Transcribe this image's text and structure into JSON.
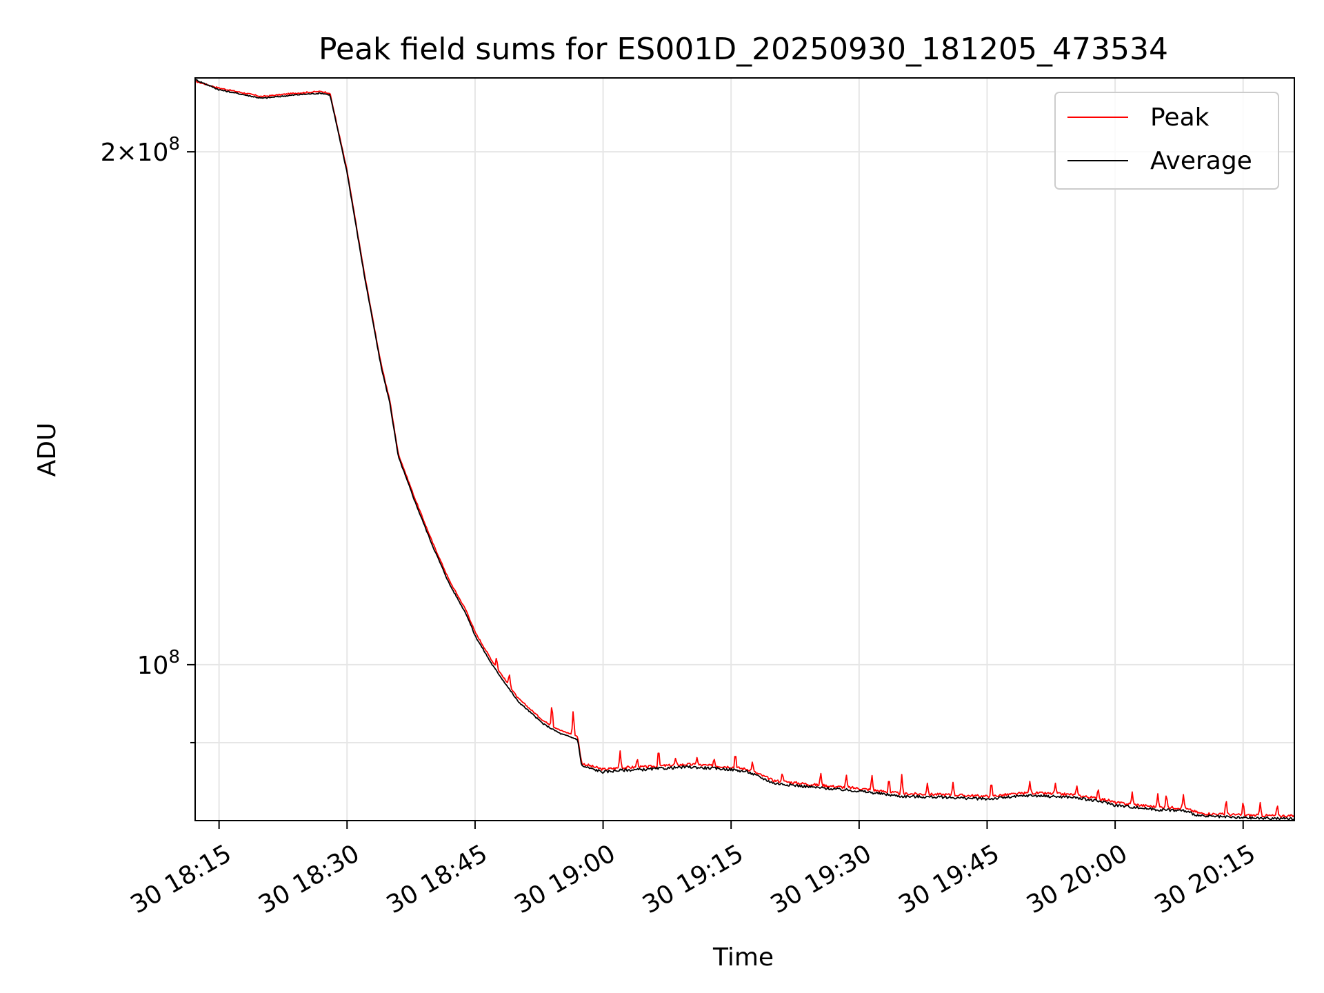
{
  "chart_data": {
    "type": "line",
    "title": "Peak field sums for ES001D_20250930_181205_473534",
    "xlabel": "Time",
    "ylabel": "ADU",
    "yscale": "log",
    "grid": true,
    "legend_position": "upper right",
    "x_ticks": [
      "30 18:15",
      "30 18:30",
      "30 18:45",
      "30 19:00",
      "30 19:15",
      "30 19:30",
      "30 19:45",
      "30 20:00",
      "30 20:15"
    ],
    "x_tick_minutes": [
      15,
      30,
      45,
      60,
      75,
      90,
      105,
      120,
      135
    ],
    "xlim_minutes": [
      12.2,
      141.0
    ],
    "y_ticks": [
      {
        "value": 200000000,
        "base": "2×10",
        "exp": "8"
      },
      {
        "value": 100000000,
        "base": "10",
        "exp": "8"
      }
    ],
    "y_minor_ticks": [
      90000000
    ],
    "ylim": [
      81000000,
      221000000
    ],
    "series": [
      {
        "name": "Peak",
        "color": "#ff0000",
        "points": [
          [
            12.2,
            220000000
          ],
          [
            15,
            218000000
          ],
          [
            20,
            215500000
          ],
          [
            24,
            216500000
          ],
          [
            27,
            217000000
          ],
          [
            28,
            216500000
          ],
          [
            30,
            195000000
          ],
          [
            32,
            170000000
          ],
          [
            34,
            150000000
          ],
          [
            35,
            143000000
          ],
          [
            36,
            133000000
          ],
          [
            38,
            125000000
          ],
          [
            40,
            118000000
          ],
          [
            42,
            112000000
          ],
          [
            44,
            107500000
          ],
          [
            45,
            104500000
          ],
          [
            47,
            100500000
          ],
          [
            50,
            95600000
          ],
          [
            53,
            92700000
          ],
          [
            55,
            91500000
          ],
          [
            57,
            90800000
          ],
          [
            57.5,
            87500000
          ],
          [
            60,
            86800000
          ],
          [
            62,
            87000000
          ],
          [
            65,
            87100000
          ],
          [
            70,
            87400000
          ],
          [
            75,
            87100000
          ],
          [
            77,
            86800000
          ],
          [
            80,
            85500000
          ],
          [
            85,
            85000000
          ],
          [
            90,
            84600000
          ],
          [
            95,
            84000000
          ],
          [
            100,
            83900000
          ],
          [
            105,
            83700000
          ],
          [
            110,
            84100000
          ],
          [
            115,
            83900000
          ],
          [
            119,
            83300000
          ],
          [
            120,
            83000000
          ],
          [
            125,
            82500000
          ],
          [
            128,
            82400000
          ],
          [
            130,
            81800000
          ],
          [
            135,
            81600000
          ],
          [
            141,
            81500000
          ]
        ],
        "spikes": [
          [
            44.5,
            103200000
          ],
          [
            47.5,
            101000000
          ],
          [
            49,
            99000000
          ],
          [
            54,
            95000000
          ],
          [
            56.5,
            94200000
          ],
          [
            62,
            89000000
          ],
          [
            64,
            88200000
          ],
          [
            66.5,
            89500000
          ],
          [
            68.5,
            88200000
          ],
          [
            71,
            88200000
          ],
          [
            73,
            88200000
          ],
          [
            75.5,
            89000000
          ],
          [
            77.5,
            87800000
          ],
          [
            81,
            86500000
          ],
          [
            85.5,
            86500000
          ],
          [
            88.5,
            86300000
          ],
          [
            91.5,
            86300000
          ],
          [
            93.5,
            86000000
          ],
          [
            95,
            86200000
          ],
          [
            98,
            85200000
          ],
          [
            101,
            85300000
          ],
          [
            105.5,
            85600000
          ],
          [
            110,
            85400000
          ],
          [
            113,
            85200000
          ],
          [
            115.5,
            85000000
          ],
          [
            118,
            84700000
          ],
          [
            122,
            84200000
          ],
          [
            125,
            84000000
          ],
          [
            126,
            84100000
          ],
          [
            128,
            83900000
          ],
          [
            133,
            83500000
          ],
          [
            135,
            83300000
          ],
          [
            137,
            83000000
          ],
          [
            139,
            82900000
          ]
        ]
      },
      {
        "name": "Average",
        "color": "#000000",
        "points": [
          [
            12.2,
            220500000
          ],
          [
            15,
            217500000
          ],
          [
            20,
            215000000
          ],
          [
            24,
            216000000
          ],
          [
            27,
            216500000
          ],
          [
            28,
            216000000
          ],
          [
            30,
            194500000
          ],
          [
            32,
            169500000
          ],
          [
            34,
            149500000
          ],
          [
            35,
            142500000
          ],
          [
            36,
            132500000
          ],
          [
            38,
            124500000
          ],
          [
            40,
            117500000
          ],
          [
            42,
            111500000
          ],
          [
            44,
            107000000
          ],
          [
            45,
            104000000
          ],
          [
            47,
            100000000
          ],
          [
            50,
            95200000
          ],
          [
            53,
            92300000
          ],
          [
            55,
            91100000
          ],
          [
            57,
            90400000
          ],
          [
            57.5,
            87200000
          ],
          [
            60,
            86500000
          ],
          [
            62,
            86700000
          ],
          [
            65,
            86800000
          ],
          [
            70,
            87100000
          ],
          [
            75,
            86800000
          ],
          [
            77,
            86500000
          ],
          [
            80,
            85200000
          ],
          [
            85,
            84700000
          ],
          [
            90,
            84300000
          ],
          [
            95,
            83700000
          ],
          [
            100,
            83600000
          ],
          [
            105,
            83400000
          ],
          [
            110,
            83800000
          ],
          [
            115,
            83600000
          ],
          [
            119,
            83000000
          ],
          [
            120,
            82700000
          ],
          [
            125,
            82200000
          ],
          [
            128,
            82100000
          ],
          [
            130,
            81500000
          ],
          [
            135,
            81300000
          ],
          [
            141,
            81200000
          ]
        ]
      }
    ]
  }
}
